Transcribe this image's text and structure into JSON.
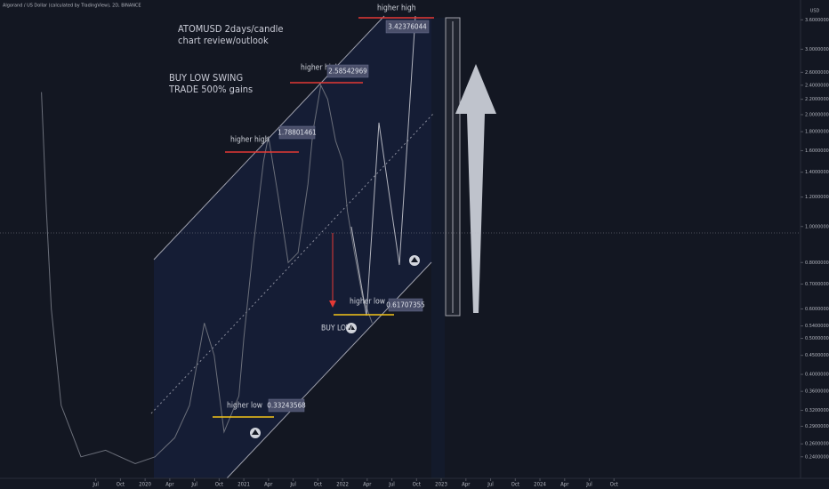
{
  "chart_data": {
    "type": "line",
    "title": "Algorand / US Dollar (calculated by TradingView), 2D, BINANCE",
    "y_unit": "USD",
    "log_scale": true,
    "grid": false,
    "xlim": [
      2018.53,
      2026.64
    ],
    "xticks": [
      {
        "value": 2019.5,
        "label": "Jul"
      },
      {
        "value": 2019.75,
        "label": "Oct"
      },
      2020,
      {
        "value": 2020.25,
        "label": "Apr"
      },
      {
        "value": 2020.5,
        "label": "Jul"
      },
      {
        "value": 2020.75,
        "label": "Oct"
      },
      2021,
      {
        "value": 2021.25,
        "label": "Apr"
      },
      {
        "value": 2021.5,
        "label": "Jul"
      },
      {
        "value": 2021.75,
        "label": "Oct"
      },
      2022,
      {
        "value": 2022.25,
        "label": "Apr"
      },
      {
        "value": 2022.5,
        "label": "Jul"
      },
      {
        "value": 2022.75,
        "label": "Oct"
      },
      2023,
      {
        "value": 2023.25,
        "label": "Apr"
      },
      {
        "value": 2023.5,
        "label": "Jul"
      },
      {
        "value": 2023.75,
        "label": "Oct"
      },
      2024,
      {
        "value": 2024.25,
        "label": "Apr"
      },
      {
        "value": 2024.5,
        "label": "Jul"
      },
      {
        "value": 2024.75,
        "label": "Oct"
      }
    ],
    "ylim": [
      0.21,
      4.07
    ],
    "yticks": [
      {
        "value": 3.6,
        "label": "3.60000000"
      },
      {
        "value": 3.0,
        "label": "3.00000000"
      },
      {
        "value": 2.6,
        "label": "2.60000000"
      },
      {
        "value": 2.4,
        "label": "2.40000000"
      },
      {
        "value": 2.2,
        "label": "2.20000000"
      },
      {
        "value": 2.0,
        "label": "2.00000000"
      },
      {
        "value": 1.8,
        "label": "1.80000000"
      },
      {
        "value": 1.6,
        "label": "1.60000000"
      },
      {
        "value": 1.4,
        "label": "1.40000000"
      },
      {
        "value": 1.2,
        "label": "1.20000000"
      },
      {
        "value": 1.0,
        "label": "1.00000000"
      },
      {
        "value": 0.8,
        "label": "0.80000000"
      },
      {
        "value": 0.7,
        "label": "0.70000000"
      },
      {
        "value": 0.6,
        "label": "0.60000000"
      },
      {
        "value": 0.54,
        "label": "0.54000000"
      },
      {
        "value": 0.5,
        "label": "0.50000000"
      },
      {
        "value": 0.45,
        "label": "0.45000000"
      },
      {
        "value": 0.4,
        "label": "0.40000000"
      },
      {
        "value": 0.36,
        "label": "0.36000000"
      },
      {
        "value": 0.32,
        "label": "0.32000000"
      },
      {
        "value": 0.29,
        "label": "0.29000000"
      },
      {
        "value": 0.26,
        "label": "0.26000000"
      },
      {
        "value": 0.24,
        "label": "0.24000000"
      }
    ],
    "series": [
      {
        "name": "ALGOUSD",
        "color": "#6b6f7a",
        "x": [
          2018.95,
          2019.0,
          2019.05,
          2019.15,
          2019.35,
          2019.6,
          2019.9,
          2020.1,
          2020.3,
          2020.45,
          2020.6,
          2020.7,
          2020.8,
          2020.95,
          2021.0,
          2021.1,
          2021.2,
          2021.25,
          2021.35,
          2021.45,
          2021.55,
          2021.65,
          2021.7,
          2021.78,
          2021.85,
          2021.93,
          2022.0,
          2022.05,
          2022.12,
          2022.2,
          2022.3
        ],
        "values": [
          2.3,
          1.1,
          0.6,
          0.33,
          0.24,
          0.25,
          0.23,
          0.24,
          0.27,
          0.33,
          0.55,
          0.45,
          0.28,
          0.35,
          0.5,
          0.9,
          1.5,
          1.75,
          1.2,
          0.8,
          0.85,
          1.3,
          1.8,
          2.4,
          2.2,
          1.7,
          1.5,
          1.1,
          0.85,
          0.65,
          0.55
        ]
      }
    ],
    "notes": [
      "ATOMUSD 2days/candle",
      "chart review/outlook",
      "BUY LOW SWING",
      "TRADE 500% gains"
    ],
    "annotations": [
      "higher high",
      "higher high",
      "higher high",
      "higher low",
      "higher low",
      "BUY LOW"
    ],
    "price_labels": [
      "3.42376044",
      "2.58542969",
      "1.78801461",
      "0.61707355",
      "0.33243568"
    ]
  }
}
